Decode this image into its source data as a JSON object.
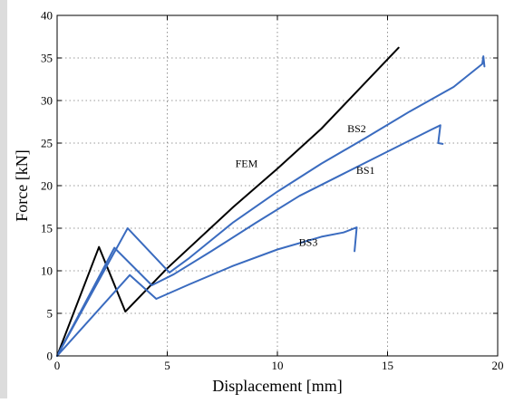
{
  "chart_data": {
    "type": "line",
    "title": "",
    "xlabel": "Displacement [mm]",
    "ylabel": "Force [kN]",
    "xlim": [
      0,
      20
    ],
    "ylim": [
      0,
      40
    ],
    "xticks": [
      0,
      5,
      10,
      15,
      20
    ],
    "yticks": [
      0,
      5,
      10,
      15,
      20,
      25,
      30,
      35,
      40
    ],
    "grid": "dotted",
    "series": [
      {
        "name": "FEM",
        "color": "#000000",
        "points": [
          [
            0,
            0
          ],
          [
            1.9,
            12.8
          ],
          [
            3.1,
            5.2
          ],
          [
            5.0,
            10.3
          ],
          [
            8.0,
            17.5
          ],
          [
            10.0,
            22.0
          ],
          [
            12.0,
            26.7
          ],
          [
            15.5,
            36.2
          ]
        ]
      },
      {
        "name": "BS2",
        "color": "#3a6bbf",
        "points": [
          [
            0,
            0
          ],
          [
            3.2,
            15.0
          ],
          [
            5.1,
            9.8
          ],
          [
            6.0,
            11.5
          ],
          [
            8.0,
            15.7
          ],
          [
            10.0,
            19.3
          ],
          [
            12.0,
            22.6
          ],
          [
            14.0,
            25.6
          ],
          [
            16.0,
            28.7
          ],
          [
            18.0,
            31.6
          ],
          [
            19.3,
            34.3
          ],
          [
            19.35,
            35.2
          ],
          [
            19.4,
            34.0
          ]
        ]
      },
      {
        "name": "BS1",
        "color": "#3a6bbf",
        "points": [
          [
            0,
            0
          ],
          [
            2.6,
            12.7
          ],
          [
            4.3,
            8.3
          ],
          [
            5.3,
            9.6
          ],
          [
            7.0,
            12.3
          ],
          [
            9.0,
            15.6
          ],
          [
            11.0,
            18.8
          ],
          [
            13.0,
            21.4
          ],
          [
            15.0,
            24.0
          ],
          [
            17.0,
            26.6
          ],
          [
            17.4,
            27.1
          ],
          [
            17.3,
            25.0
          ],
          [
            17.5,
            24.9
          ]
        ]
      },
      {
        "name": "BS3",
        "color": "#3a6bbf",
        "points": [
          [
            0,
            0
          ],
          [
            3.3,
            9.5
          ],
          [
            4.5,
            6.7
          ],
          [
            6.0,
            8.4
          ],
          [
            8.0,
            10.6
          ],
          [
            10.0,
            12.5
          ],
          [
            12.0,
            14.0
          ],
          [
            13.0,
            14.5
          ],
          [
            13.6,
            15.1
          ],
          [
            13.5,
            12.3
          ]
        ]
      }
    ],
    "annotations": [
      {
        "text": "FEM",
        "x": 8.6,
        "y": 22.2
      },
      {
        "text": "BS2",
        "x": 13.6,
        "y": 26.3
      },
      {
        "text": "BS1",
        "x": 14.0,
        "y": 21.4
      },
      {
        "text": "BS3",
        "x": 11.4,
        "y": 12.9
      }
    ]
  }
}
